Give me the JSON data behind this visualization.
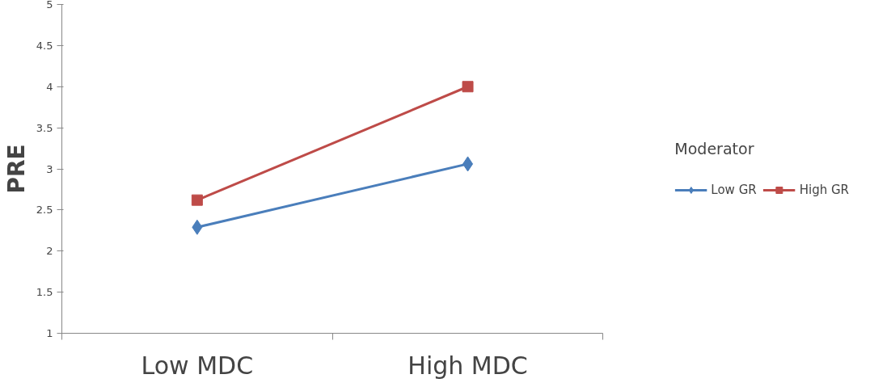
{
  "chart_data": {
    "type": "line",
    "ylabel": "PRE",
    "categories": [
      "Low MDC",
      "High MDC"
    ],
    "series": [
      {
        "name": "Low GR",
        "color": "#4a7ebb",
        "values": [
          2.29,
          3.06
        ],
        "marker": "diamond"
      },
      {
        "name": "High GR",
        "color": "#be4b48",
        "values": [
          2.62,
          4.0
        ],
        "marker": "square"
      }
    ],
    "legend_title": "Moderator",
    "legend": "right",
    "ylim": [
      1,
      5
    ],
    "yticks": [
      1,
      1.5,
      2,
      2.5,
      3,
      3.5,
      4,
      4.5,
      5
    ],
    "grid": false,
    "line_style": "solid"
  }
}
